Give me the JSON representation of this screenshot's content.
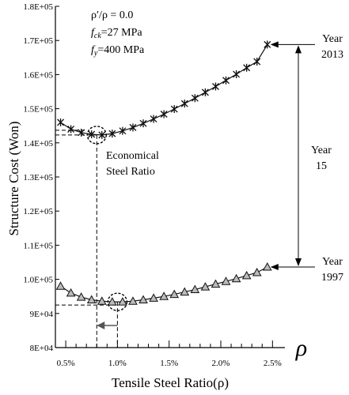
{
  "chart_data": {
    "type": "line",
    "xlabel": "Tensile Steel Ratio(ρ)",
    "ylabel": "Structure Cost (Won)",
    "axis_symbol": "ρ",
    "xlim": [
      0.4,
      2.62
    ],
    "ylim": [
      80000,
      180000
    ],
    "x_ticks": [
      {
        "value": 0.5,
        "label": "0.5%"
      },
      {
        "value": 1.0,
        "label": "1.0%"
      },
      {
        "value": 1.5,
        "label": "1.5%"
      },
      {
        "value": 2.0,
        "label": "2.0%"
      },
      {
        "value": 2.5,
        "label": "2.5%"
      }
    ],
    "x_minor_ticks": [
      0.6,
      0.7,
      0.8,
      0.9,
      1.1,
      1.2,
      1.3,
      1.4,
      1.6,
      1.7,
      1.8,
      1.9,
      2.1,
      2.2,
      2.3,
      2.4
    ],
    "y_ticks": [
      {
        "value": 80000,
        "label": "8E+04"
      },
      {
        "value": 90000,
        "label": "9E+04"
      },
      {
        "value": 100000,
        "label": "1.0E+05"
      },
      {
        "value": 110000,
        "label": "1.1E+05"
      },
      {
        "value": 120000,
        "label": "1.2E+05"
      },
      {
        "value": 130000,
        "label": "1.3E+05"
      },
      {
        "value": 140000,
        "label": "1.4E+05"
      },
      {
        "value": 150000,
        "label": "1.5E+05"
      },
      {
        "value": 160000,
        "label": "1.6E+05"
      },
      {
        "value": 170000,
        "label": "1.7E+05"
      },
      {
        "value": 180000,
        "label": "1.8E+05"
      }
    ],
    "x": [
      0.45,
      0.55,
      0.65,
      0.75,
      0.85,
      0.95,
      1.05,
      1.15,
      1.25,
      1.35,
      1.45,
      1.55,
      1.65,
      1.75,
      1.85,
      1.95,
      2.05,
      2.15,
      2.25,
      2.35,
      2.45
    ],
    "series": [
      {
        "marker": "x",
        "color": "#111111",
        "values": [
          146000,
          144000,
          143000,
          142500,
          142300,
          142700,
          143500,
          144500,
          145700,
          147000,
          148400,
          149900,
          151500,
          153100,
          154800,
          156500,
          158300,
          160100,
          162000,
          163800,
          168800
        ]
      },
      {
        "marker": "triangle",
        "color": "#111111",
        "fill": "#bbbbbb",
        "values": [
          98000,
          96000,
          94800,
          94000,
          93600,
          93400,
          93400,
          93600,
          94000,
          94500,
          95000,
          95600,
          96300,
          97000,
          97800,
          98600,
          99400,
          100200,
          101100,
          102000,
          103600
        ]
      }
    ],
    "annotations": {
      "params": {
        "line1": "ρ′/ρ = 0.0",
        "fck_sym": "f",
        "fck_sub": "ck",
        "fck_val": "=27 MPa",
        "fy_sym": "f",
        "fy_sub": "y",
        "fy_val": "=400 MPa"
      },
      "economical_line1": "Economical",
      "economical_line2": "Steel Ratio",
      "year_top_label": "Year",
      "year_top_value": "2013",
      "year_mid_label": "Year",
      "year_mid_value": "15",
      "year_bottom_label": "Year",
      "year_bottom_value": "1997",
      "econ_ratio_2013": 0.8,
      "econ_ratio_1997": 1.0
    }
  }
}
